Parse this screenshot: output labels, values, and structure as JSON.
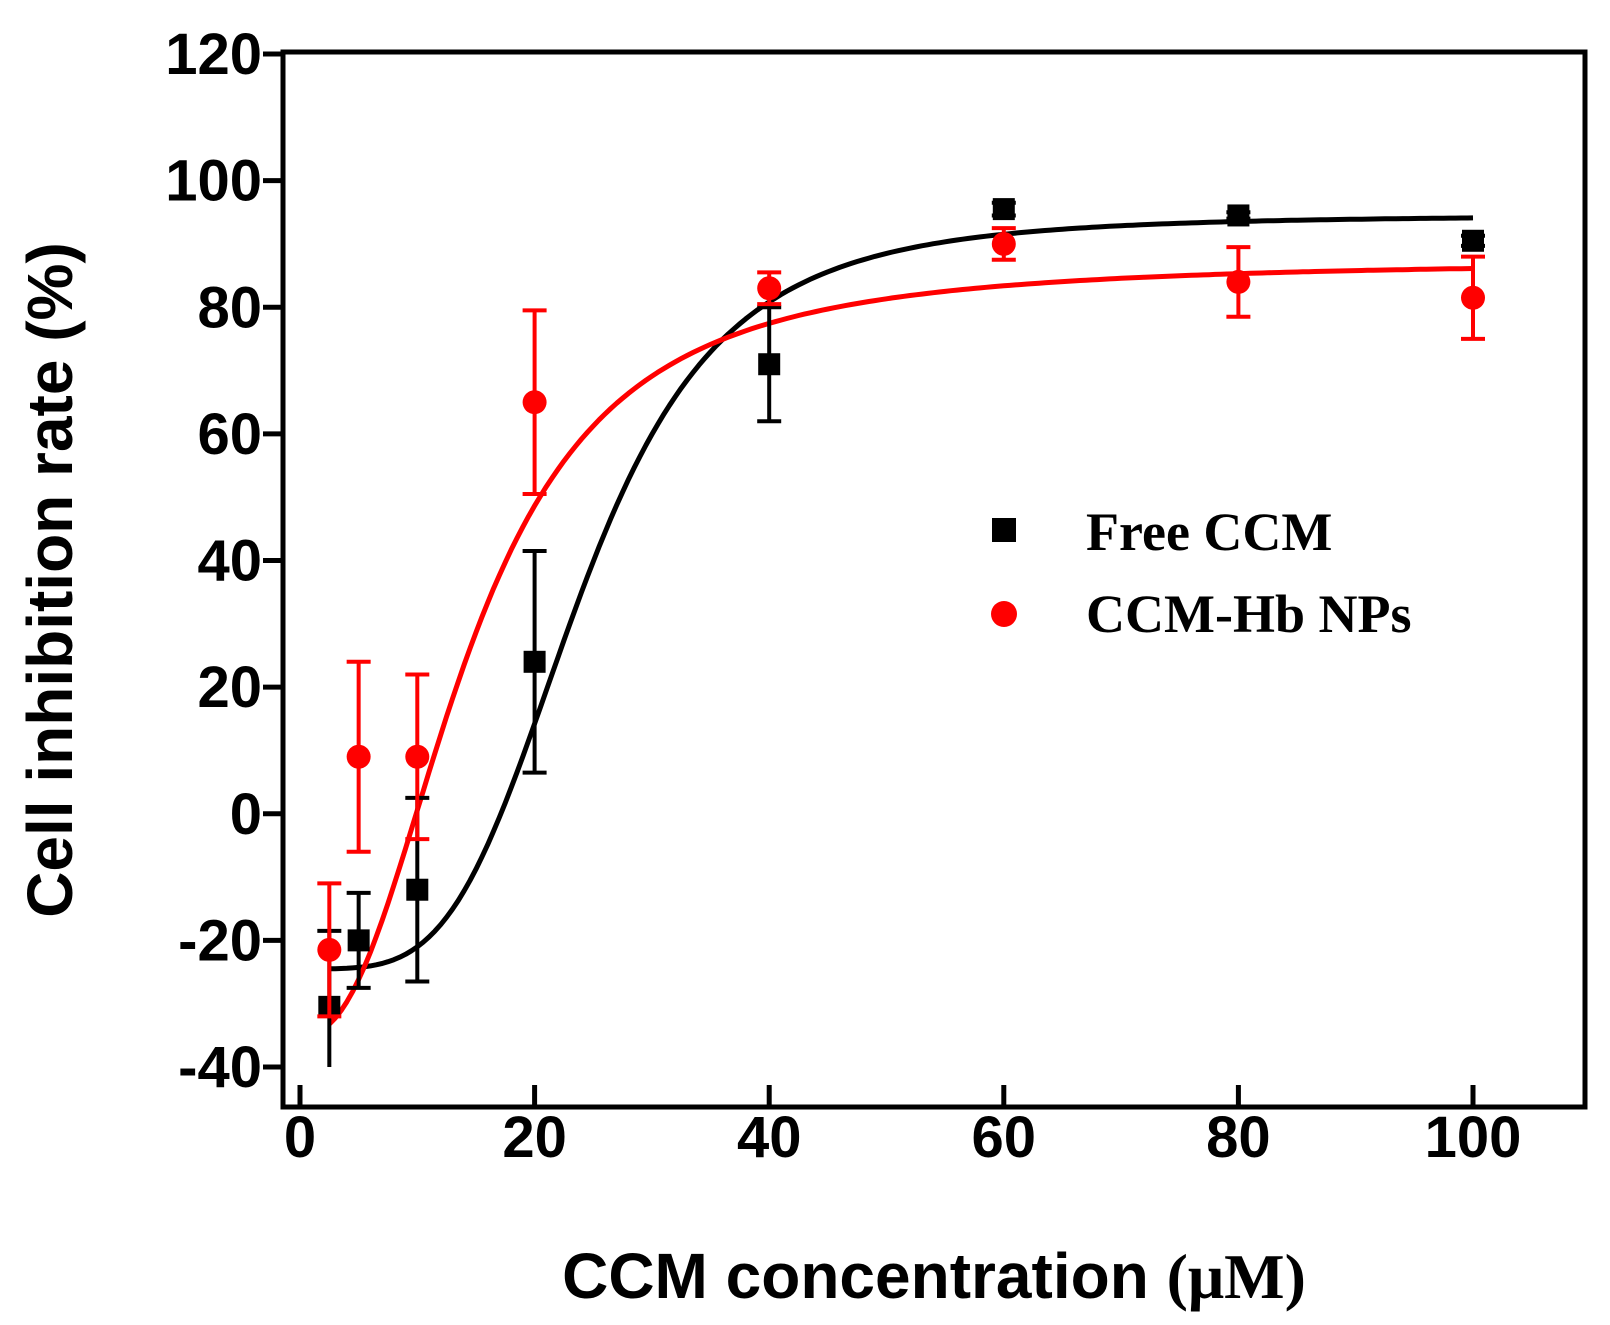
{
  "chart_data": {
    "type": "scatter",
    "title": "",
    "xlabel": "CCM concentration",
    "xlabel_unit": "(μM)",
    "ylabel": "Cell inhibition rate (%)",
    "xlim": [
      0,
      110
    ],
    "ylim": [
      -40,
      120
    ],
    "xticks": [
      0,
      20,
      40,
      60,
      80,
      100
    ],
    "yticks": [
      -40,
      -20,
      0,
      20,
      40,
      60,
      80,
      100,
      120
    ],
    "legend_position": "center-right",
    "series": [
      {
        "name": "Free CCM",
        "marker": "square",
        "color": "#000000",
        "x": [
          2.5,
          5,
          10,
          20,
          40,
          60,
          80,
          100
        ],
        "y": [
          -30.5,
          -20,
          -12,
          24,
          71,
          95.5,
          94.5,
          90.5
        ],
        "err": [
          12,
          7.5,
          14.5,
          17.5,
          9,
          1,
          0.5,
          0.8
        ],
        "fit": {
          "bottom": -24.5,
          "top": 94.5,
          "x50": 24,
          "hill": 4
        }
      },
      {
        "name": "CCM-Hb NPs",
        "marker": "circle",
        "color": "#ff0000",
        "x": [
          2.5,
          5,
          10,
          20,
          40,
          60,
          80,
          100
        ],
        "y": [
          -21.5,
          9,
          9,
          65,
          83,
          90,
          84,
          81.5
        ],
        "err": [
          10.5,
          15,
          13,
          14.5,
          2.5,
          2.5,
          5.5,
          6.5
        ],
        "fit": {
          "bottom": -35,
          "top": 87.3,
          "x50": 14.5,
          "hill": 2.4
        }
      }
    ]
  }
}
